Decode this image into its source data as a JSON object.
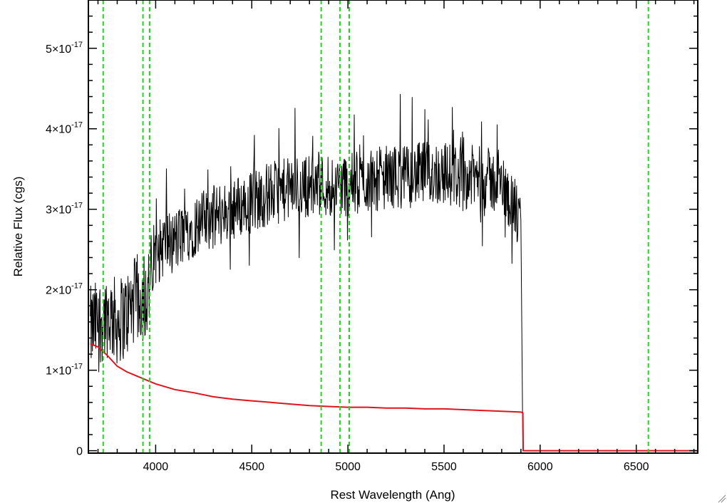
{
  "chart_data": {
    "type": "line",
    "title": "",
    "xlabel": "Rest Wavelength (Ang)",
    "ylabel": "Relative Flux (cgs)",
    "xlim": [
      3650,
      6820
    ],
    "ylim": [
      -3e-19,
      5.6e-17
    ],
    "x_ticks": [
      4000,
      4500,
      5000,
      5500,
      6000,
      6500
    ],
    "y_ticks": [
      {
        "value": 0,
        "label": "0",
        "exp": ""
      },
      {
        "value": 1e-17,
        "label": "1×10",
        "exp": "-17"
      },
      {
        "value": 2e-17,
        "label": "2×10",
        "exp": "-17"
      },
      {
        "value": 3e-17,
        "label": "3×10",
        "exp": "-17"
      },
      {
        "value": 4e-17,
        "label": "4×10",
        "exp": "-17"
      },
      {
        "value": 5e-17,
        "label": "5×10",
        "exp": "-17"
      }
    ],
    "grid": false,
    "reference_lines_x": [
      3727,
      3934,
      3969,
      4861,
      4959,
      5007,
      6563
    ],
    "series": [
      {
        "color": "#000000",
        "style": "noisy spectrum",
        "x": [
          3660,
          3700,
          3750,
          3800,
          3850,
          3900,
          3950,
          4000,
          4050,
          4100,
          4200,
          4300,
          4400,
          4500,
          4600,
          4700,
          4800,
          4900,
          5000,
          5100,
          5200,
          5300,
          5400,
          5500,
          5600,
          5700,
          5800,
          5850,
          5900,
          5910
        ],
        "values": [
          1.5e-17,
          1.6e-17,
          1.7e-17,
          1.6e-17,
          1.7e-17,
          1.9e-17,
          1.9e-17,
          2.4e-17,
          2.6e-17,
          2.6e-17,
          2.8e-17,
          2.9e-17,
          3e-17,
          3.1e-17,
          3.2e-17,
          3.25e-17,
          3.3e-17,
          3.3e-17,
          3.3e-17,
          3.35e-17,
          3.4e-17,
          3.4e-17,
          3.45e-17,
          3.45e-17,
          3.4e-17,
          3.4e-17,
          3.3e-17,
          3.1e-17,
          2.8e-17,
          0
        ]
      },
      {
        "color": "#e0141b",
        "style": "model spectrum",
        "x": [
          3660,
          3700,
          3750,
          3800,
          3850,
          3900,
          3950,
          4000,
          4100,
          4200,
          4300,
          4400,
          4500,
          4600,
          4700,
          4800,
          4900,
          5000,
          5100,
          5200,
          5300,
          5400,
          5500,
          5600,
          5700,
          5800,
          5900,
          5910,
          5912,
          6820
        ],
        "values": [
          1.33e-17,
          1.29e-17,
          1.18e-17,
          1.05e-17,
          9.8e-18,
          9.3e-18,
          8.8e-18,
          8.3e-18,
          7.6e-18,
          7.2e-18,
          6.7e-18,
          6.4e-18,
          6.2e-18,
          6e-18,
          5.8e-18,
          5.6e-18,
          5.5e-18,
          5.4e-18,
          5.4e-18,
          5.3e-18,
          5.3e-18,
          5.2e-18,
          5.2e-18,
          5.1e-18,
          5e-18,
          4.9e-18,
          4.8e-18,
          4.7e-18,
          0,
          0
        ]
      }
    ]
  }
}
